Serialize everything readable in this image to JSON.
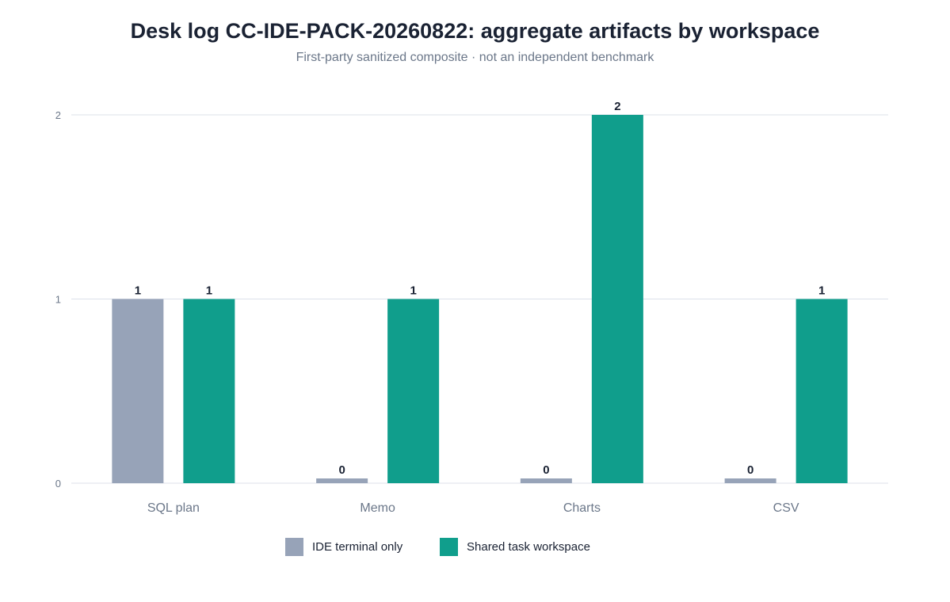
{
  "title": "Desk log CC-IDE-PACK-20260822: aggregate artifacts by workspace",
  "subtitle": "First-party sanitized composite · not an independent benchmark",
  "chart_data": {
    "type": "bar",
    "title": "Desk log CC-IDE-PACK-20260822: aggregate artifacts by workspace",
    "subtitle": "First-party sanitized composite · not an independent benchmark",
    "categories": [
      "SQL plan",
      "Memo",
      "Charts",
      "CSV"
    ],
    "series": [
      {
        "name": "IDE terminal only",
        "color": "#97a3b8",
        "values": [
          1,
          0,
          0,
          0
        ]
      },
      {
        "name": "Shared task workspace",
        "color": "#109e8c",
        "values": [
          1,
          1,
          2,
          1
        ]
      }
    ],
    "xlabel": "",
    "ylabel": "",
    "ylim": [
      0,
      2
    ],
    "yticks": [
      0,
      1,
      2
    ],
    "grid": true,
    "legend_position": "bottom-center",
    "data_labels": true
  }
}
